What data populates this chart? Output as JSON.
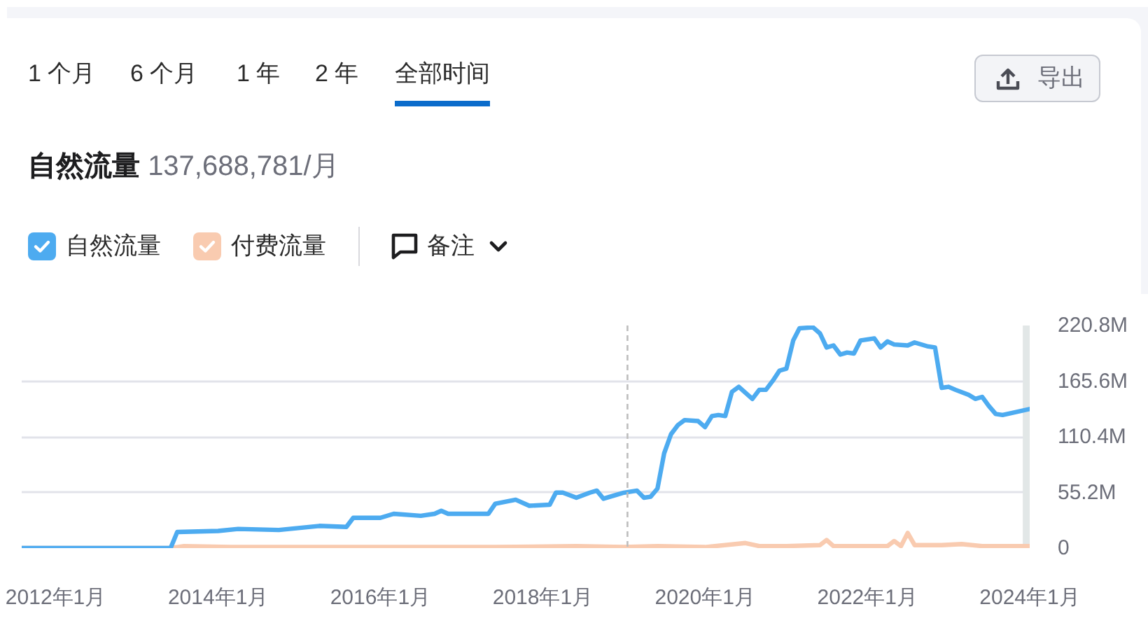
{
  "chart_data": {
    "type": "line",
    "title": "自然流量",
    "subtitle": "137,688,781/月",
    "annotations": [
      "1 个月",
      "6 个月",
      "1 年",
      "2 年",
      "全部时间",
      "导出",
      "备注"
    ],
    "series": [
      {
        "name": "自然流量",
        "color": "#4dabf0",
        "x": [
          "2011-08",
          "2013-06",
          "2013-07",
          "2014-01",
          "2014-04",
          "2014-10",
          "2015-04",
          "2015-08",
          "2015-09",
          "2016-01",
          "2016-03",
          "2016-07",
          "2016-09",
          "2016-10",
          "2016-11",
          "2017-05",
          "2017-06",
          "2017-09",
          "2017-11",
          "2018-02",
          "2018-03",
          "2018-04",
          "2018-06",
          "2018-08",
          "2018-09",
          "2018-10",
          "2018-12",
          "2019-01",
          "2019-03",
          "2019-04",
          "2019-05",
          "2019-06",
          "2019-07",
          "2019-08",
          "2019-09",
          "2019-10",
          "2019-12",
          "2020-01",
          "2020-02",
          "2020-03",
          "2020-04",
          "2020-05",
          "2020-06",
          "2020-08",
          "2020-09",
          "2020-10",
          "2020-11",
          "2020-12",
          "2021-01",
          "2021-02",
          "2021-03",
          "2021-05",
          "2021-06",
          "2021-07",
          "2021-08",
          "2021-09",
          "2021-10",
          "2021-11",
          "2021-12",
          "2022-02",
          "2022-03",
          "2022-04",
          "2022-05",
          "2022-07",
          "2022-08",
          "2022-10",
          "2022-11",
          "2022-12",
          "2023-01",
          "2023-02",
          "2023-04",
          "2023-05",
          "2023-06",
          "2023-07",
          "2023-08",
          "2023-09",
          "2024-01"
        ],
        "values": [
          0,
          0,
          16,
          17,
          19,
          18,
          22,
          21,
          30,
          30,
          34,
          32,
          34,
          37,
          34,
          34,
          44,
          48,
          42,
          43,
          55,
          55,
          50,
          55,
          57,
          49,
          53,
          55,
          57,
          50,
          51,
          59,
          94,
          113,
          122,
          127,
          126,
          120,
          131,
          132,
          131,
          155,
          160,
          148,
          157,
          157,
          166,
          176,
          178,
          206,
          218,
          219,
          213,
          199,
          201,
          192,
          194,
          193,
          206,
          208,
          199,
          205,
          202,
          201,
          204,
          200,
          199,
          159,
          160,
          157,
          152,
          148,
          150,
          141,
          133,
          132,
          138
        ]
      },
      {
        "name": "付费流量",
        "color": "#f9cbb0",
        "x": [
          "2011-08",
          "2013-06",
          "2013-08",
          "2014-03",
          "2015-06",
          "2016-06",
          "2017-06",
          "2018-06",
          "2019-01",
          "2019-06",
          "2020-01",
          "2020-07",
          "2020-09",
          "2021-01",
          "2021-06",
          "2021-07",
          "2021-08",
          "2022-01",
          "2022-04",
          "2022-05",
          "2022-06",
          "2022-07",
          "2022-08",
          "2022-12",
          "2023-03",
          "2023-06",
          "2024-01"
        ],
        "values": [
          0,
          0,
          2,
          1,
          1,
          1,
          1,
          2,
          1,
          2,
          1,
          5,
          2,
          2,
          3,
          8,
          2,
          2,
          2,
          7,
          2,
          15,
          3,
          3,
          4,
          2,
          2
        ]
      }
    ],
    "xlim": [
      "2011-08",
      "2024-01"
    ],
    "xticks": [
      {
        "value": "2012-01",
        "label": "2012年1月"
      },
      {
        "value": "2014-01",
        "label": "2014年1月"
      },
      {
        "value": "2016-01",
        "label": "2016年1月"
      },
      {
        "value": "2018-01",
        "label": "2018年1月"
      },
      {
        "value": "2020-01",
        "label": "2020年1月"
      },
      {
        "value": "2022-01",
        "label": "2022年1月"
      },
      {
        "value": "2024-01",
        "label": "2024年1月"
      }
    ],
    "ylim": [
      0,
      220.8
    ],
    "yticks": [
      0,
      {
        "value": 55.2,
        "label": "55.2M"
      },
      {
        "value": 110.4,
        "label": "110.4M"
      },
      {
        "value": 165.6,
        "label": "165.6M"
      },
      {
        "value": 220.8,
        "label": "220.8M"
      }
    ],
    "ref_lines": [
      {
        "axis": "x",
        "value": "2019-01-17",
        "color": "#bdbdbd",
        "line_style": "dashed"
      }
    ],
    "bands": [
      {
        "axis": "x",
        "from": "2023-12",
        "to": "2024-01",
        "color": "#e2e7e7"
      }
    ],
    "grid": "y",
    "legend": "top left",
    "line_style": "solid"
  }
}
